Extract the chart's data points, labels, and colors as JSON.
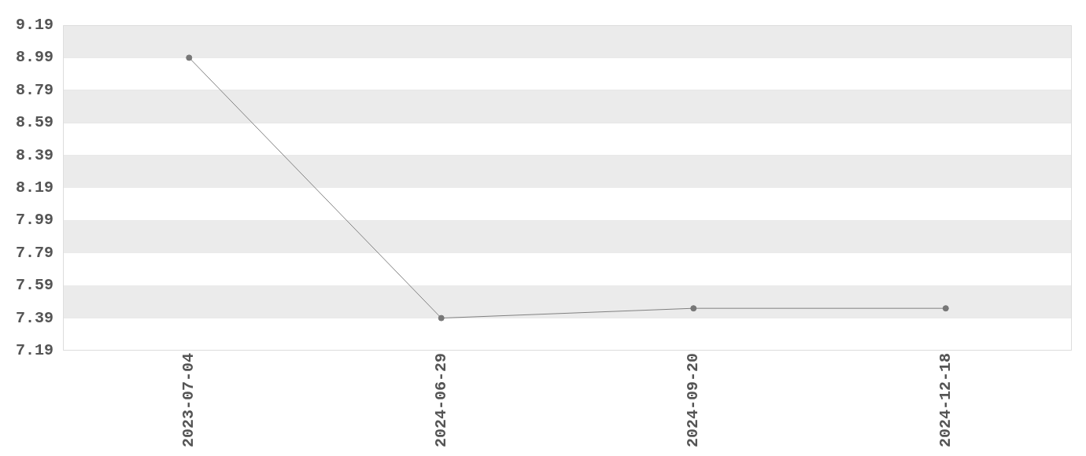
{
  "chart_data": {
    "type": "line",
    "categories": [
      "2023-07-04",
      "2024-06-29",
      "2024-09-20",
      "2024-12-18"
    ],
    "series": [
      {
        "color": "#808080",
        "values": [
          8.99,
          7.39,
          7.45,
          7.45
        ]
      }
    ],
    "ylim": [
      7.19,
      9.19
    ],
    "yticks": [
      7.19,
      7.39,
      7.59,
      7.79,
      7.99,
      8.19,
      8.39,
      8.59,
      8.79,
      8.99,
      9.19
    ],
    "grid": "y",
    "marker": "circle",
    "line_style": "solid",
    "legend": false
  }
}
